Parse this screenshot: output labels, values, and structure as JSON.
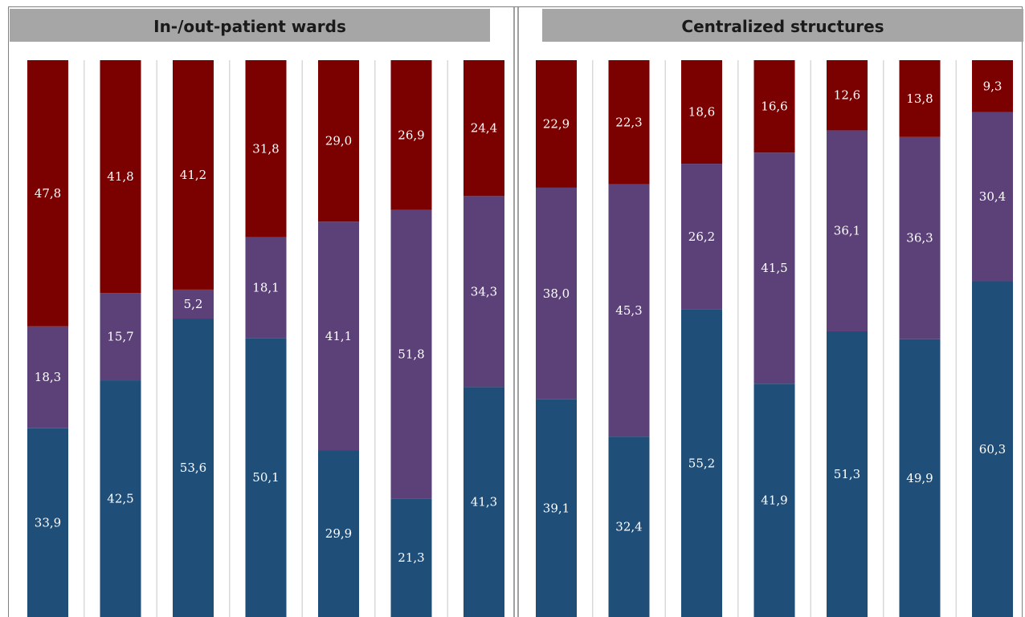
{
  "colors": {
    "bottom": "#1f4e79",
    "middle": "#5b4178",
    "top": "#7b0000",
    "header": "#a6a6a6",
    "gridline": "#d9d9d9",
    "divider": "#808080"
  },
  "chart_data": [
    {
      "type": "bar",
      "stacked": true,
      "percent": true,
      "title": "In-/out-patient wards",
      "ylim": [
        0,
        100
      ],
      "series": [
        {
          "values": [
            33.9,
            42.5,
            53.6,
            50.1,
            29.9,
            21.3,
            41.3
          ],
          "labels": [
            "33,9",
            "42,5",
            "53,6",
            "50,1",
            "29,9",
            "21,3",
            "41,3"
          ]
        },
        {
          "values": [
            18.3,
            15.7,
            5.2,
            18.1,
            41.1,
            51.8,
            34.3
          ],
          "labels": [
            "18,3",
            "15,7",
            "5,2",
            "18,1",
            "41,1",
            "51,8",
            "34,3"
          ]
        },
        {
          "values": [
            47.8,
            41.8,
            41.2,
            31.8,
            29.0,
            26.9,
            24.4
          ],
          "labels": [
            "47,8",
            "41,8",
            "41,2",
            "31,8",
            "29,0",
            "26,9",
            "24,4"
          ]
        }
      ]
    },
    {
      "type": "bar",
      "stacked": true,
      "percent": true,
      "title": "Centralized structures",
      "ylim": [
        0,
        100
      ],
      "series": [
        {
          "values": [
            39.1,
            32.4,
            55.2,
            41.9,
            51.3,
            49.9,
            60.3
          ],
          "labels": [
            "39,1",
            "32,4",
            "55,2",
            "41,9",
            "51,3",
            "49,9",
            "60,3"
          ]
        },
        {
          "values": [
            38.0,
            45.3,
            26.2,
            41.5,
            36.1,
            36.3,
            30.4
          ],
          "labels": [
            "38,0",
            "45,3",
            "26,2",
            "41,5",
            "36,1",
            "36,3",
            "30,4"
          ]
        },
        {
          "values": [
            22.9,
            22.3,
            18.6,
            16.6,
            12.6,
            13.8,
            9.3
          ],
          "labels": [
            "22,9",
            "22,3",
            "18,6",
            "16,6",
            "12,6",
            "13,8",
            "9,3"
          ]
        }
      ]
    }
  ]
}
